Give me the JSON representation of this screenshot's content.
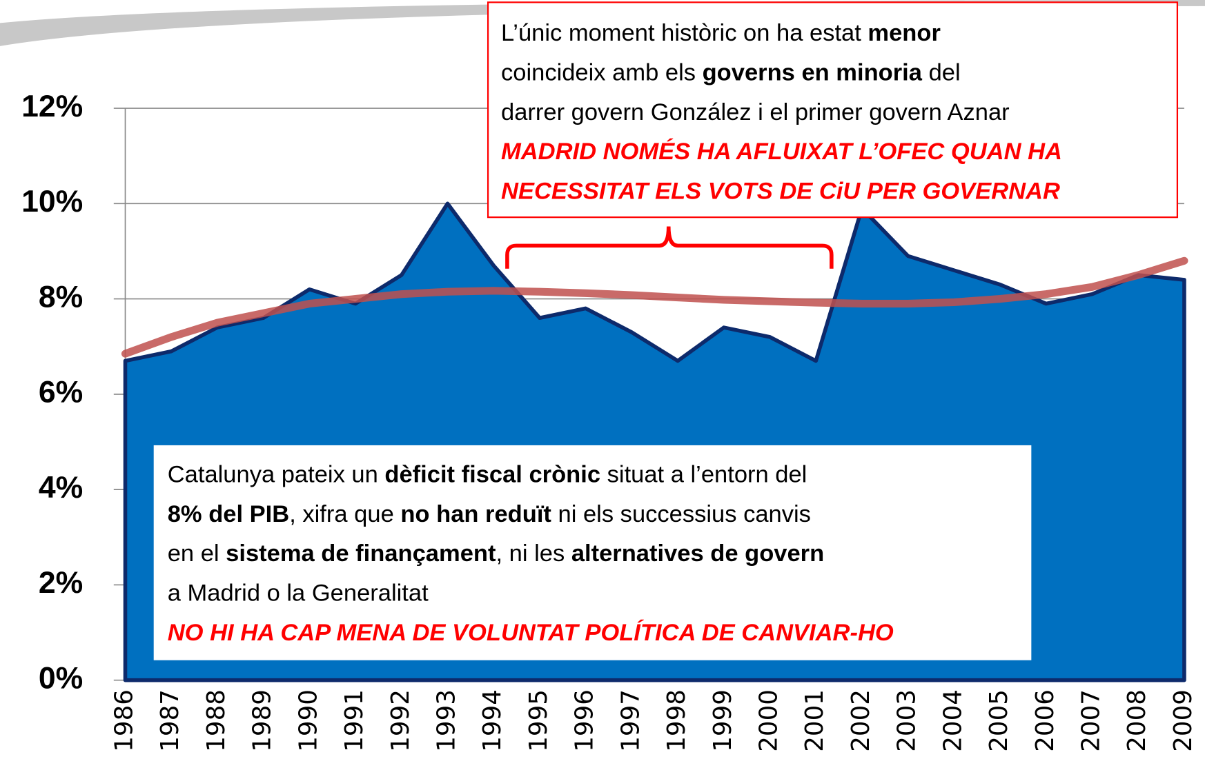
{
  "chart_data": {
    "type": "area",
    "categories": [
      "1986",
      "1987",
      "1988",
      "1989",
      "1990",
      "1991",
      "1992",
      "1993",
      "1994",
      "1995",
      "1996",
      "1997",
      "1998",
      "1999",
      "2000",
      "2001",
      "2002",
      "2003",
      "2004",
      "2005",
      "2006",
      "2007",
      "2008",
      "2009"
    ],
    "values": [
      6.7,
      6.9,
      7.4,
      7.6,
      8.2,
      7.9,
      8.5,
      10.0,
      8.7,
      7.6,
      7.8,
      7.3,
      6.7,
      7.4,
      7.2,
      6.7,
      9.9,
      8.9,
      8.6,
      8.3,
      7.9,
      8.1,
      8.5,
      8.4
    ],
    "color": "#0070c0",
    "edge_color": "#0d2a6b",
    "trendline": {
      "color": "#c0504d",
      "values": [
        6.85,
        7.2,
        7.5,
        7.7,
        7.9,
        8.0,
        8.1,
        8.15,
        8.17,
        8.15,
        8.12,
        8.08,
        8.03,
        7.98,
        7.95,
        7.92,
        7.9,
        7.9,
        7.93,
        8.0,
        8.1,
        8.25,
        8.5,
        8.8
      ]
    },
    "ylim": [
      0,
      12
    ],
    "yticks": [
      {
        "value": 0,
        "label": "0%"
      },
      {
        "value": 2,
        "label": "2%"
      },
      {
        "value": 4,
        "label": "4%"
      },
      {
        "value": 6,
        "label": "6%"
      },
      {
        "value": 8,
        "label": "8%"
      },
      {
        "value": 10,
        "label": "10%"
      },
      {
        "value": 12,
        "label": "12%"
      }
    ],
    "grid": true,
    "annotations": [
      {
        "lines": [
          [
            {
              "text": "L’únic moment històric on ha estat "
            },
            {
              "text": "menor",
              "bold": true
            }
          ],
          [
            {
              "text": "coincideix amb els "
            },
            {
              "text": "governs en minoria",
              "bold": true
            },
            {
              "text": " del"
            }
          ],
          [
            {
              "text": "darrer govern González i el primer govern Aznar"
            }
          ],
          [
            {
              "text": "MADRID NOMÉS HA AFLUIXAT L’OFEC QUAN HA",
              "bold": true,
              "italic": true,
              "color": "#ff0000"
            }
          ],
          [
            {
              "text": "NECESSITAT ELS VOTS DE CiU PER GOVERNAR",
              "bold": true,
              "italic": true,
              "color": "#ff0000"
            }
          ]
        ]
      },
      {
        "lines": [
          [
            {
              "text": "Catalunya pateix un "
            },
            {
              "text": "dèficit fiscal crònic",
              "bold": true
            },
            {
              "text": " situat a l’entorn del"
            }
          ],
          [
            {
              "text": "8% del PIB",
              "bold": true
            },
            {
              "text": ", xifra que "
            },
            {
              "text": "no han reduït",
              "bold": true
            },
            {
              "text": " ni els successius canvis"
            }
          ],
          [
            {
              "text": "en el "
            },
            {
              "text": "sistema de finançament",
              "bold": true
            },
            {
              "text": ", ni les "
            },
            {
              "text": "alternatives de govern",
              "bold": true
            }
          ],
          [
            {
              "text": "a Madrid o la Generalitat"
            }
          ],
          [
            {
              "text": "NO HI HA CAP MENA DE VOLUNTAT POLÍTICA DE CANVIAR-HO",
              "bold": true,
              "italic": true,
              "color": "#ff0000"
            }
          ]
        ]
      }
    ]
  }
}
